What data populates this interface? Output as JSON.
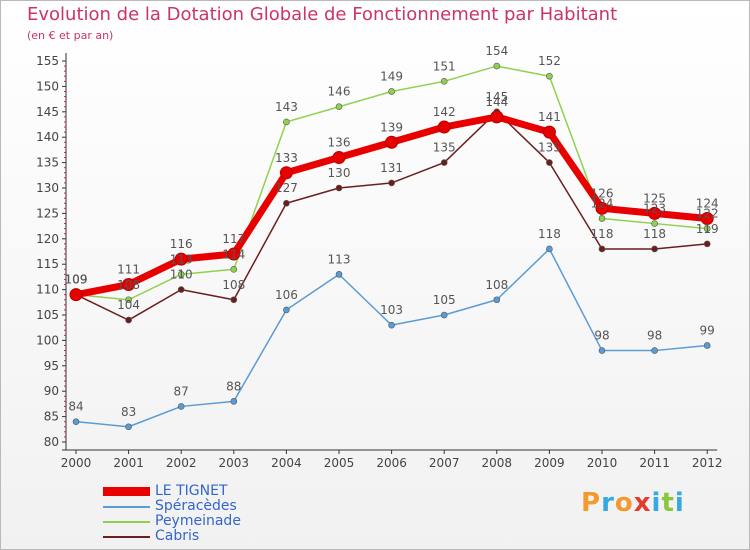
{
  "title": "Evolution de la Dotation Globale de Fonctionnement par Habitant",
  "subtitle": "(en € et par an)",
  "brand": {
    "text": "Proxiti",
    "colors": [
      "#f29a2e",
      "#36a9e1",
      "#f29a2e",
      "#e63c2f",
      "#36a9e1",
      "#8cc63f",
      "#36a9e1"
    ]
  },
  "chart_data": {
    "type": "line",
    "x": [
      "2000",
      "2001",
      "2002",
      "2003",
      "2004",
      "2005",
      "2006",
      "2007",
      "2008",
      "2009",
      "2010",
      "2011",
      "2012"
    ],
    "ylim": [
      80,
      155
    ],
    "yticks": [
      80,
      85,
      90,
      95,
      100,
      105,
      110,
      115,
      120,
      125,
      130,
      135,
      140,
      145,
      150,
      155
    ],
    "grid": false,
    "legend_position": "bottom-left",
    "series": [
      {
        "name": "LE TIGNET",
        "color": "#e80000",
        "values": [
          109,
          111,
          116,
          117,
          133,
          136,
          139,
          142,
          144,
          141,
          126,
          125,
          124
        ]
      },
      {
        "name": "Spéracèdes",
        "color": "#5b9bd5",
        "values": [
          84,
          83,
          87,
          88,
          106,
          113,
          103,
          105,
          108,
          118,
          98,
          98,
          99
        ]
      },
      {
        "name": "Peymeinade",
        "color": "#8fd14f",
        "values": [
          109,
          108,
          113,
          114,
          143,
          146,
          149,
          151,
          154,
          152,
          124,
          123,
          122
        ]
      },
      {
        "name": "Cabris",
        "color": "#6b1e1e",
        "values": [
          109,
          104,
          110,
          108,
          127,
          130,
          131,
          135,
          145,
          135,
          118,
          118,
          119
        ]
      }
    ]
  }
}
